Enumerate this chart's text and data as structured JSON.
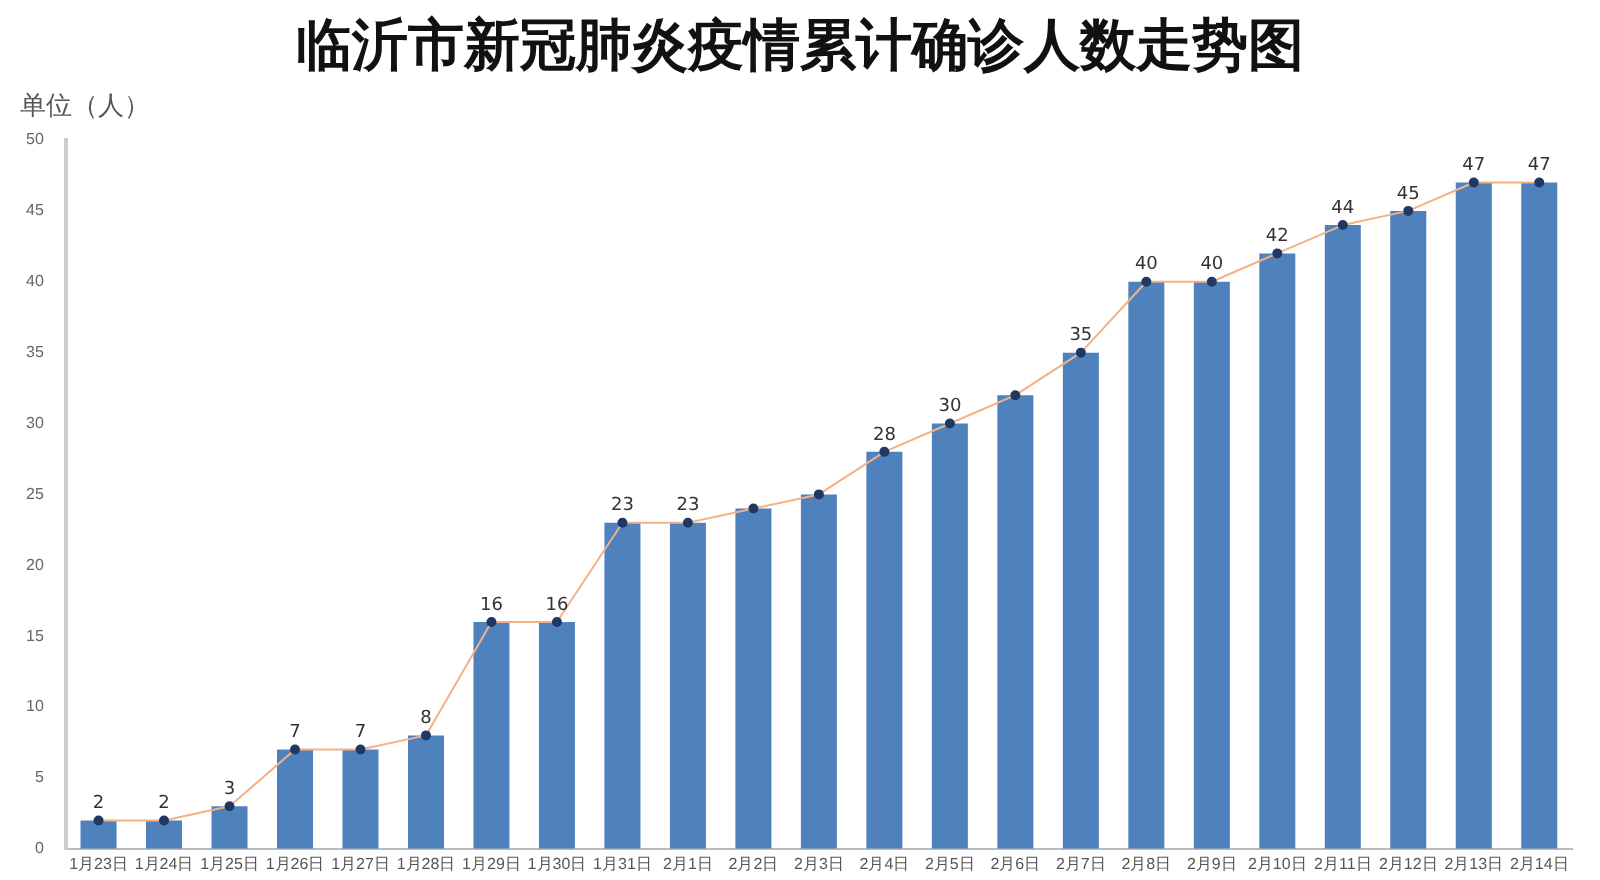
{
  "chart_data": {
    "type": "bar",
    "title": "临沂市新冠肺炎疫情累计确诊人数走势图",
    "ylabel": "单位（人）",
    "categories": [
      "1月23日",
      "1月24日",
      "1月25日",
      "1月26日",
      "1月27日",
      "1月28日",
      "1月29日",
      "1月30日",
      "1月31日",
      "2月1日",
      "2月2日",
      "2月3日",
      "2月4日",
      "2月5日",
      "2月6日",
      "2月7日",
      "2月8日",
      "2月9日",
      "2月10日",
      "2月11日",
      "2月12日",
      "2月13日",
      "2月14日"
    ],
    "series": [
      {
        "color": "#4f81bd",
        "values": [
          2,
          2,
          3,
          7,
          7,
          8,
          16,
          16,
          23,
          23,
          24,
          25,
          28,
          30,
          32,
          35,
          40,
          40,
          42,
          44,
          45,
          47,
          47
        ],
        "value_labels": [
          "2",
          "2",
          "3",
          "7",
          "7",
          "8",
          "16",
          "16",
          "23",
          "23",
          null,
          null,
          "28",
          "30",
          null,
          "35",
          "40",
          "40",
          "42",
          "44",
          "45",
          "47",
          "47"
        ]
      },
      {
        "type": "line",
        "color": "#f4b183",
        "marker": "circle",
        "values": [
          2,
          2,
          3,
          7,
          7,
          8,
          16,
          16,
          23,
          23,
          24,
          25,
          28,
          30,
          32,
          35,
          40,
          40,
          42,
          44,
          45,
          47,
          47
        ]
      }
    ],
    "ylim": [
      0,
      50
    ],
    "yticks": [
      0,
      5,
      10,
      15,
      20,
      25,
      30,
      35,
      40,
      45,
      50
    ],
    "grid": false,
    "legend": false
  }
}
